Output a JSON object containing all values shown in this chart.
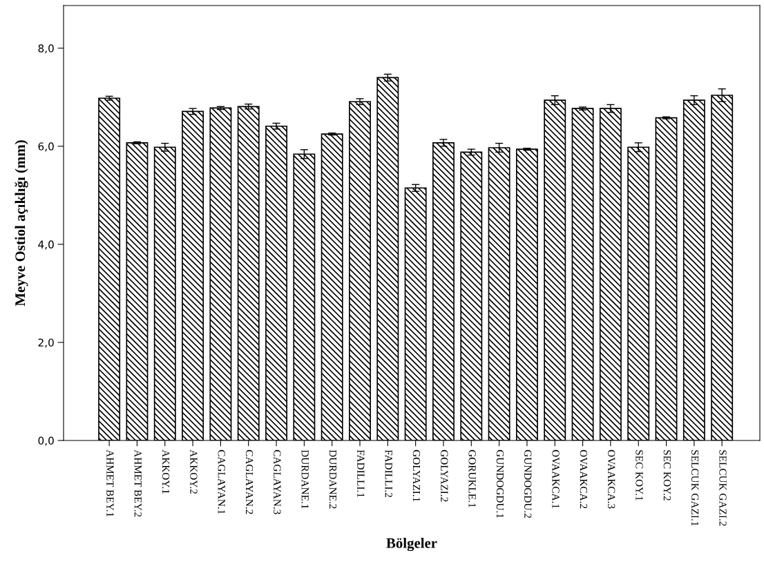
{
  "chart_data": {
    "type": "bar",
    "xlabel": "Bölgeler",
    "ylabel": "Meyve Ostiol açıklığı (mm)",
    "categories": [
      "AHMET BEY.1",
      "AHMET BEY.2",
      "AKKOY.1",
      "AKKOY.2",
      "CAGLAYAN.1",
      "CAGLAYAN.2",
      "CAGLAYAN.3",
      "DURDANE.1",
      "DURDANE.2",
      "FADILLI.1",
      "FADILLI.2",
      "GOLYAZI.1",
      "GOLYAZI.2",
      "GORUKLE.1",
      "GUNDOGDU.1",
      "GUNDOGDU.2",
      "OVAAKCA.1",
      "OVAAKCA.2",
      "OVAAKCA.3",
      "SEC KOY.1",
      "SEC KOY.2",
      "SELCUK GAZI.1",
      "SELCUK GAZI.2"
    ],
    "values": [
      6.98,
      6.07,
      5.98,
      6.71,
      6.78,
      6.81,
      6.41,
      5.84,
      6.25,
      6.91,
      7.4,
      5.15,
      6.07,
      5.88,
      5.97,
      5.94,
      6.94,
      6.77,
      6.77,
      5.98,
      6.58,
      6.94,
      7.04
    ],
    "errors": [
      0.04,
      0.02,
      0.08,
      0.06,
      0.03,
      0.05,
      0.06,
      0.09,
      0.02,
      0.06,
      0.07,
      0.07,
      0.07,
      0.06,
      0.09,
      0.02,
      0.09,
      0.03,
      0.08,
      0.09,
      0.02,
      0.09,
      0.13
    ],
    "color": "#000000",
    "ylim": [
      0,
      8.87
    ],
    "yticks": [
      {
        "value": 0,
        "label": "0,0"
      },
      {
        "value": 2,
        "label": "2,0"
      },
      {
        "value": 4,
        "label": "4,0"
      },
      {
        "value": 6,
        "label": "6,0"
      },
      {
        "value": 8,
        "label": "8,0"
      }
    ],
    "grid": false,
    "legend": false
  }
}
